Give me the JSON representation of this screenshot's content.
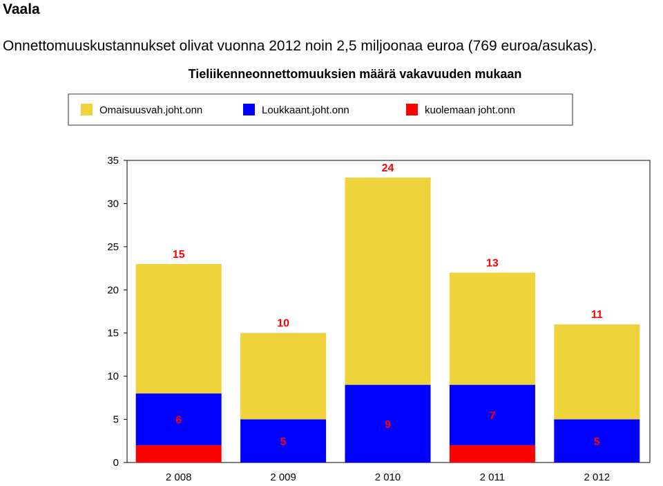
{
  "page": {
    "title": "Vaala",
    "subtitle": "Onnettomuuskustannukset olivat vuonna 2012 noin 2,5 miljoonaa euroa (769 euroa/asukas)."
  },
  "chart_data": {
    "type": "bar",
    "stacked": true,
    "title": "Tieliikenneonnettomuuksien määrä vakavuuden mukaan",
    "xlabel": "",
    "ylabel": "",
    "ylim": [
      0,
      35
    ],
    "yticks": [
      0,
      5,
      10,
      15,
      20,
      25,
      30,
      35
    ],
    "grid": false,
    "legend_position": "top",
    "categories": [
      "2 008",
      "2 009",
      "2 010",
      "2 011",
      "2 012"
    ],
    "series": [
      {
        "name": "kuolemaan joht.onn",
        "color": "#ff0000",
        "values": [
          2,
          0,
          0,
          2,
          0
        ]
      },
      {
        "name": "Loukkaant.joht.onn",
        "color": "#0000ff",
        "values": [
          6,
          5,
          9,
          7,
          5
        ]
      },
      {
        "name": "Omaisuusvah.joht.onn",
        "color": "#eed33a",
        "values": [
          15,
          10,
          24,
          13,
          11
        ]
      }
    ],
    "legend_order": [
      "Omaisuusvah.joht.onn",
      "Loukkaant.joht.onn",
      "kuolemaan joht.onn"
    ],
    "label_color": "#ff0000"
  }
}
